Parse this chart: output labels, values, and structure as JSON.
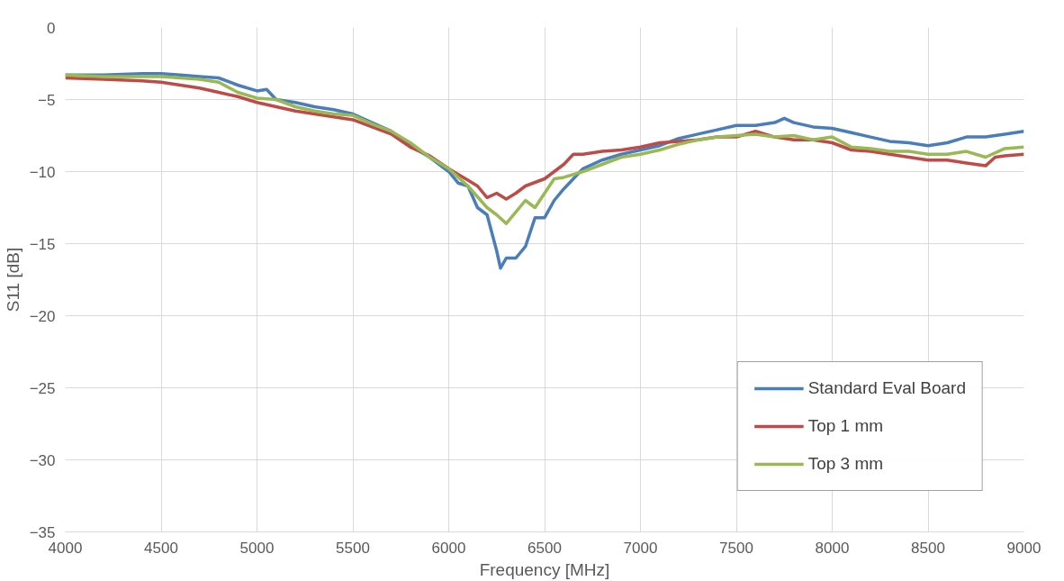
{
  "chart_data": {
    "type": "line",
    "xlabel": "Frequency [MHz]",
    "ylabel": "S11 [dB]",
    "xlim": [
      4000,
      9000
    ],
    "xticks": [
      4000,
      4500,
      5000,
      5500,
      6000,
      6500,
      7000,
      7500,
      8000,
      8500,
      9000
    ],
    "ylim": [
      -35,
      0
    ],
    "yticks": [
      -35,
      -30,
      -25,
      -20,
      -15,
      -10,
      -5,
      0
    ],
    "grid": true,
    "legend": "bottom right",
    "marker": "none",
    "line_style": "solid",
    "series": [
      {
        "name": "Standard Eval Board",
        "color": "#4a7ebb",
        "x": [
          4000,
          4100,
          4200,
          4300,
          4400,
          4500,
          4600,
          4700,
          4800,
          4900,
          5000,
          5050,
          5100,
          5200,
          5300,
          5400,
          5500,
          5600,
          5700,
          5800,
          5900,
          6000,
          6050,
          6100,
          6150,
          6200,
          6250,
          6270,
          6300,
          6350,
          6400,
          6450,
          6500,
          6550,
          6600,
          6650,
          6700,
          6800,
          6900,
          7000,
          7100,
          7200,
          7300,
          7400,
          7500,
          7600,
          7700,
          7750,
          7800,
          7900,
          8000,
          8100,
          8200,
          8300,
          8400,
          8500,
          8600,
          8700,
          8800,
          8900,
          9000
        ],
        "values": [
          -3.3,
          -3.3,
          -3.3,
          -3.25,
          -3.2,
          -3.2,
          -3.3,
          -3.4,
          -3.5,
          -4.0,
          -4.4,
          -4.3,
          -5.0,
          -5.2,
          -5.5,
          -5.7,
          -6.0,
          -6.6,
          -7.2,
          -8.2,
          -9.0,
          -10.0,
          -10.8,
          -11.0,
          -12.5,
          -13.0,
          -15.5,
          -16.7,
          -16.0,
          -16.0,
          -15.2,
          -13.2,
          -13.2,
          -12.0,
          -11.2,
          -10.5,
          -9.8,
          -9.2,
          -8.8,
          -8.5,
          -8.2,
          -7.7,
          -7.4,
          -7.1,
          -6.8,
          -6.8,
          -6.6,
          -6.3,
          -6.6,
          -6.9,
          -7.0,
          -7.3,
          -7.6,
          -7.9,
          -8.0,
          -8.2,
          -8.0,
          -7.6,
          -7.6,
          -7.4,
          -7.2
        ]
      },
      {
        "name": "Top 1 mm",
        "color": "#be4b48",
        "x": [
          4000,
          4200,
          4400,
          4500,
          4600,
          4700,
          4800,
          4900,
          5000,
          5100,
          5200,
          5300,
          5400,
          5500,
          5600,
          5700,
          5800,
          5900,
          6000,
          6100,
          6150,
          6200,
          6250,
          6300,
          6350,
          6400,
          6500,
          6600,
          6650,
          6700,
          6800,
          6900,
          7000,
          7100,
          7200,
          7300,
          7400,
          7500,
          7600,
          7700,
          7800,
          7900,
          8000,
          8100,
          8200,
          8300,
          8400,
          8500,
          8600,
          8700,
          8800,
          8850,
          8900,
          9000
        ],
        "values": [
          -3.5,
          -3.6,
          -3.7,
          -3.8,
          -4.0,
          -4.2,
          -4.5,
          -4.8,
          -5.2,
          -5.5,
          -5.8,
          -6.0,
          -6.2,
          -6.4,
          -6.9,
          -7.4,
          -8.3,
          -8.9,
          -9.8,
          -10.6,
          -11.0,
          -11.8,
          -11.5,
          -11.9,
          -11.5,
          -11.0,
          -10.5,
          -9.5,
          -8.8,
          -8.8,
          -8.6,
          -8.5,
          -8.3,
          -8.0,
          -7.9,
          -7.8,
          -7.6,
          -7.6,
          -7.2,
          -7.6,
          -7.8,
          -7.8,
          -8.0,
          -8.5,
          -8.6,
          -8.8,
          -9.0,
          -9.2,
          -9.2,
          -9.4,
          -9.6,
          -9.0,
          -8.9,
          -8.8
        ]
      },
      {
        "name": "Top 3 mm",
        "color": "#98b954",
        "x": [
          4000,
          4200,
          4400,
          4500,
          4600,
          4700,
          4800,
          4900,
          5000,
          5100,
          5200,
          5300,
          5400,
          5500,
          5600,
          5700,
          5800,
          5900,
          6000,
          6100,
          6200,
          6250,
          6300,
          6350,
          6400,
          6450,
          6500,
          6550,
          6600,
          6700,
          6800,
          6900,
          7000,
          7100,
          7200,
          7300,
          7400,
          7500,
          7600,
          7700,
          7800,
          7900,
          8000,
          8100,
          8200,
          8300,
          8400,
          8500,
          8600,
          8700,
          8800,
          8900,
          9000
        ],
        "values": [
          -3.3,
          -3.4,
          -3.4,
          -3.4,
          -3.5,
          -3.6,
          -3.8,
          -4.5,
          -4.9,
          -5.0,
          -5.5,
          -5.8,
          -6.0,
          -6.1,
          -6.7,
          -7.2,
          -8.0,
          -9.0,
          -9.8,
          -11.0,
          -12.5,
          -13.0,
          -13.6,
          -12.8,
          -12.0,
          -12.5,
          -11.5,
          -10.5,
          -10.4,
          -10.0,
          -9.5,
          -9.0,
          -8.8,
          -8.5,
          -8.1,
          -7.8,
          -7.6,
          -7.5,
          -7.4,
          -7.6,
          -7.5,
          -7.8,
          -7.6,
          -8.3,
          -8.4,
          -8.6,
          -8.6,
          -8.8,
          -8.8,
          -8.6,
          -9.0,
          -8.4,
          -8.3
        ]
      }
    ]
  }
}
